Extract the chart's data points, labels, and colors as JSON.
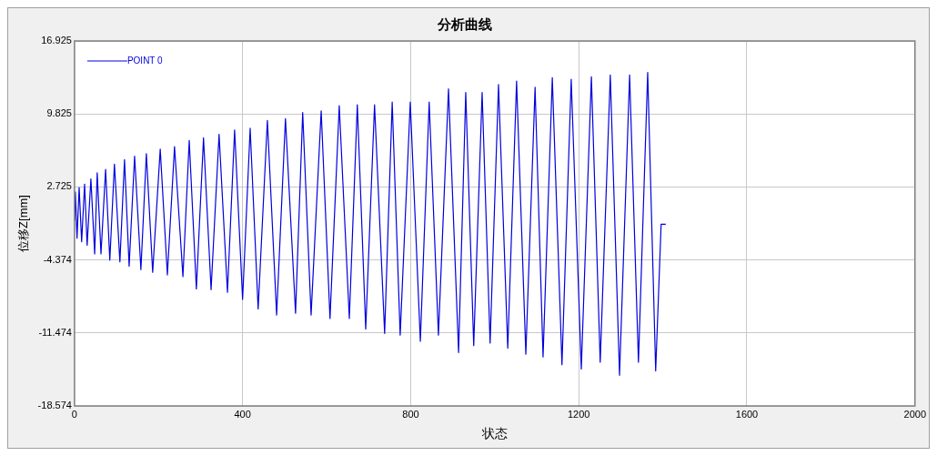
{
  "chart_data": {
    "type": "line",
    "title": "分析曲线",
    "xlabel": "状态",
    "ylabel": "位移Z[mm]",
    "xlim": [
      0,
      2000
    ],
    "xticks": [
      0,
      400,
      800,
      1200,
      1600,
      2000
    ],
    "ylim": [
      -18.574,
      16.925
    ],
    "yticks": [
      -18.574,
      -11.474,
      -4.374,
      2.725,
      9.825,
      16.925
    ],
    "grid": true,
    "legend": "top left",
    "line_style": "solid",
    "series": [
      {
        "name": "POINT 0",
        "color": "#0000dd",
        "x": [
          0,
          2,
          6,
          11,
          17,
          24,
          30,
          39,
          48,
          54,
          63,
          74,
          84,
          95,
          108,
          119,
          130,
          143,
          158,
          171,
          186,
          204,
          221,
          238,
          258,
          273,
          290,
          307,
          325,
          344,
          364,
          381,
          400,
          418,
          437,
          459,
          481,
          502,
          526,
          543,
          563,
          587,
          608,
          630,
          654,
          673,
          693,
          714,
          738,
          756,
          775,
          799,
          823,
          844,
          866,
          890,
          914,
          931,
          950,
          970,
          989,
          1009,
          1031,
          1052,
          1074,
          1096,
          1115,
          1137,
          1160,
          1182,
          1206,
          1230,
          1251,
          1275,
          1297,
          1321,
          1342,
          1364,
          1383,
          1396,
          1407
        ],
        "values": [
          -0.57,
          2.24,
          -2.26,
          2.66,
          -2.6,
          3.0,
          -2.94,
          3.51,
          -3.79,
          4.11,
          -3.79,
          4.44,
          -4.39,
          4.95,
          -4.56,
          5.38,
          -4.98,
          5.72,
          -5.32,
          5.97,
          -5.58,
          6.4,
          -5.83,
          6.65,
          -6.0,
          7.25,
          -7.19,
          7.5,
          -7.27,
          7.84,
          -7.53,
          8.27,
          -8.21,
          8.43,
          -9.14,
          9.2,
          -9.73,
          9.37,
          -9.56,
          9.96,
          -9.73,
          10.13,
          -10.07,
          10.64,
          -10.07,
          10.73,
          -11.09,
          10.73,
          -11.52,
          10.98,
          -11.69,
          10.98,
          -12.28,
          10.98,
          -11.69,
          12.26,
          -13.38,
          11.92,
          -12.71,
          11.92,
          -12.46,
          12.68,
          -12.96,
          13.02,
          -13.55,
          12.43,
          -13.81,
          13.36,
          -14.57,
          13.19,
          -14.99,
          13.44,
          -14.32,
          13.61,
          -15.59,
          13.61,
          -14.32,
          13.87,
          -15.17,
          -0.9,
          -0.9
        ]
      }
    ]
  }
}
